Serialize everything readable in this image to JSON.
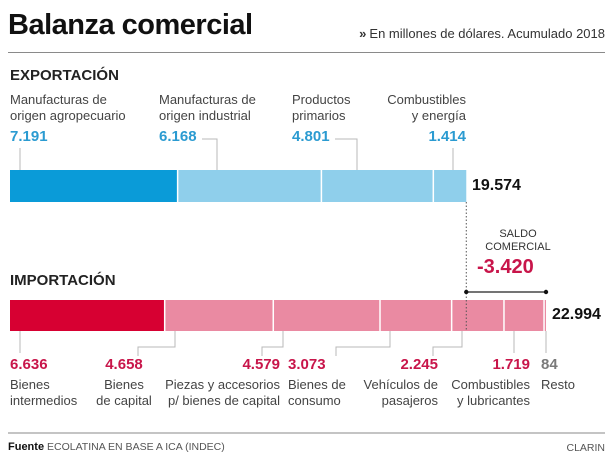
{
  "header": {
    "title": "Balanza comercial",
    "subtitle_marker": "»",
    "subtitle": "En millones de dólares. Acumulado 2018"
  },
  "colors": {
    "export_main": "#0a9bd8",
    "export_light": "#8fcfeb",
    "import_main": "#d70032",
    "import_light": "#ea8aa2",
    "import_value_text": "#c8154a",
    "export_value_text": "#2b9bd1"
  },
  "chart_data": {
    "type": "bar",
    "subtype": "stacked-horizontal",
    "title": "Balanza comercial",
    "subtitle": "En millones de dólares. Acumulado 2018",
    "units": "millones de dólares",
    "series": [
      {
        "name": "EXPORTACIÓN",
        "total": 19574,
        "total_label": "19.574",
        "segments": [
          {
            "label_lines": [
              "Manufacturas de",
              "origen agropecuario"
            ],
            "value": 7191,
            "value_label": "7.191"
          },
          {
            "label_lines": [
              "Manufacturas de",
              "origen industrial"
            ],
            "value": 6168,
            "value_label": "6.168"
          },
          {
            "label_lines": [
              "Productos",
              "primarios"
            ],
            "value": 4801,
            "value_label": "4.801"
          },
          {
            "label_lines": [
              "Combustibles",
              "y energía"
            ],
            "value": 1414,
            "value_label": "1.414"
          }
        ]
      },
      {
        "name": "IMPORTACIÓN",
        "total": 22994,
        "total_label": "22.994",
        "segments": [
          {
            "label_lines": [
              "Bienes",
              "intermedios"
            ],
            "value": 6636,
            "value_label": "6.636"
          },
          {
            "label_lines": [
              "Bienes",
              "de capital"
            ],
            "value": 4658,
            "value_label": "4.658"
          },
          {
            "label_lines": [
              "Piezas y accesorios",
              "p/ bienes de capital"
            ],
            "value": 4579,
            "value_label": "4.579"
          },
          {
            "label_lines": [
              "Bienes de",
              "consumo"
            ],
            "value": 3073,
            "value_label": "3.073"
          },
          {
            "label_lines": [
              "Vehículos de",
              "pasajeros"
            ],
            "value": 2245,
            "value_label": "2.245"
          },
          {
            "label_lines": [
              "Combustibles",
              "y lubricantes"
            ],
            "value": 1719,
            "value_label": "1.719"
          },
          {
            "label_lines": [
              "Resto"
            ],
            "value": 84,
            "value_label": "84"
          }
        ]
      }
    ],
    "annotation": {
      "label_lines": [
        "SALDO",
        "COMERCIAL"
      ],
      "value": -3420,
      "value_label": "-3.420"
    },
    "xlim": [
      0,
      22994
    ],
    "legend": "none",
    "grid": false
  },
  "footer": {
    "source_label": "Fuente",
    "source": "ECOLATINA EN BASE A ICA (INDEC)",
    "credit": "CLARIN"
  }
}
